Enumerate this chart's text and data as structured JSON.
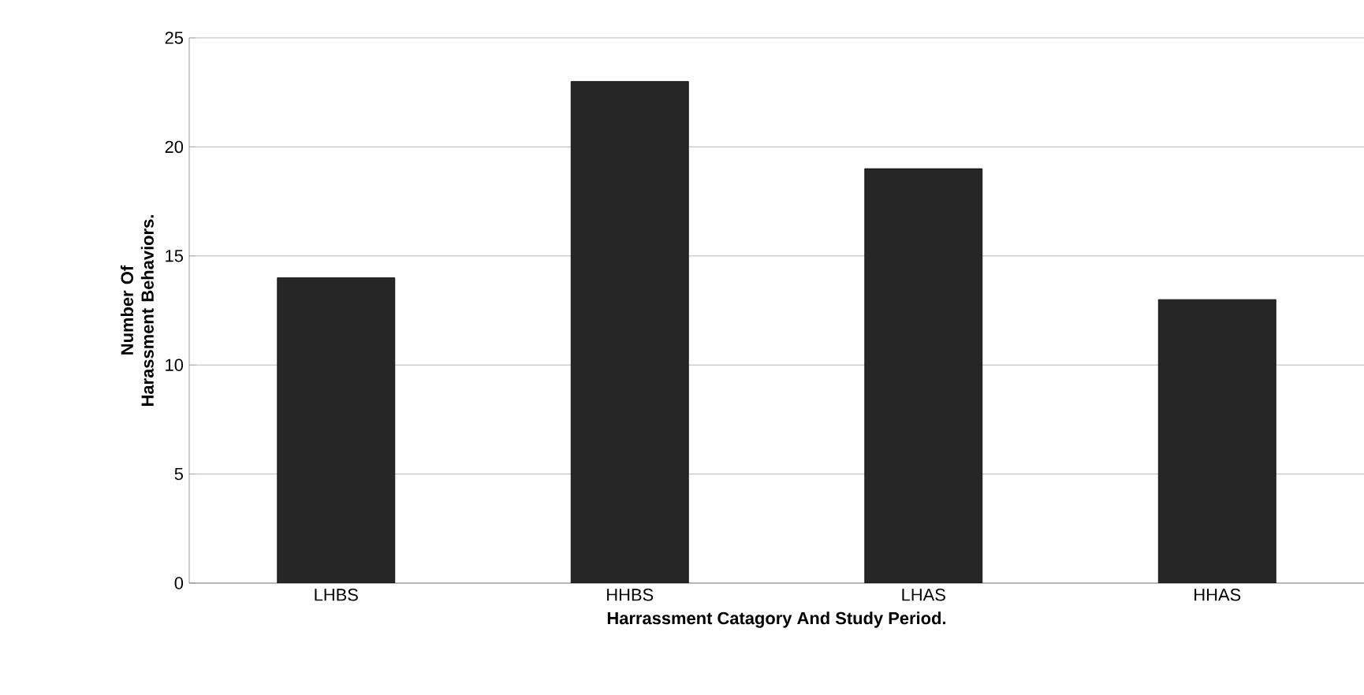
{
  "chart_data": {
    "type": "bar",
    "xlabel": "Harrassment Catagory And Study Period.",
    "ylabel": "Number Of Harassment Behaviors.",
    "categories": [
      "LHBS",
      "HHBS",
      "LHAS",
      "HHAS"
    ],
    "values": [
      14,
      23,
      19,
      13
    ],
    "color": "#262626",
    "ylim": [
      0,
      25
    ],
    "yticks": [
      0,
      5,
      10,
      15,
      20,
      25
    ],
    "grid": "y"
  }
}
